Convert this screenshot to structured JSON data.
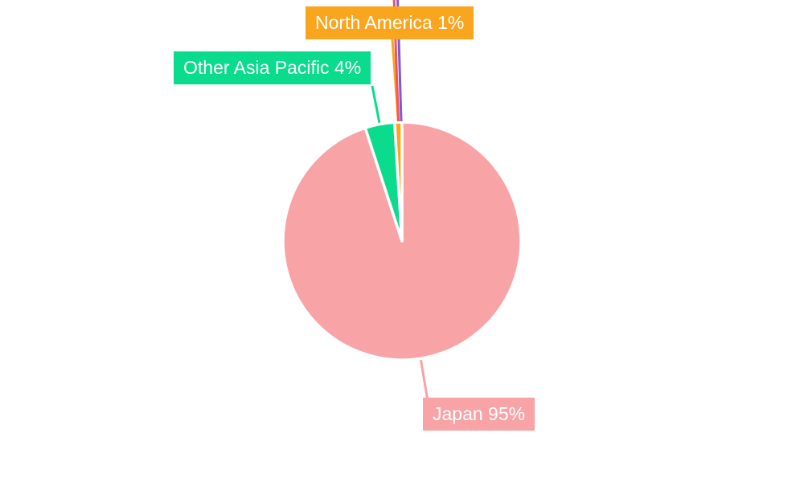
{
  "chart_data": {
    "type": "pie",
    "title": "",
    "legend": "none",
    "background": "#FFFFFF",
    "direction": "clockwise",
    "start_angle": "12-oclock",
    "slice_border_color": "#FFFFFF",
    "label_text_color": "#FFFFFF",
    "segments": [
      {
        "label": "Japan",
        "value": 95,
        "unit": "%",
        "display": "Japan 95%",
        "color": "#F8A3A6",
        "label_visible": true
      },
      {
        "label": "Other Asia Pacific",
        "value": 4,
        "unit": "%",
        "display": "Other Asia Pacific 4%",
        "color": "#0ADB8D",
        "label_visible": true
      },
      {
        "label": "North America",
        "value": 1,
        "unit": "%",
        "display": "North America 1%",
        "color": "#FAA51E",
        "label_visible": true
      },
      {
        "label": "",
        "value": 0,
        "unit": "%",
        "display": "",
        "color": "#F4545E",
        "label_visible": false
      },
      {
        "label": "",
        "value": 0,
        "unit": "%",
        "display": "",
        "color": "#7B5CD6",
        "label_visible": false
      }
    ]
  }
}
